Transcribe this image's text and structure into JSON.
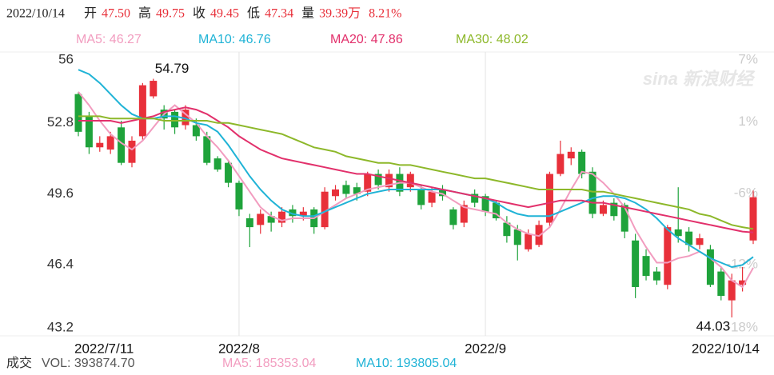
{
  "chart_data": {
    "type": "candlestick",
    "info": {
      "date": "2022/10/14",
      "fields": [
        {
          "label": "开",
          "value": "47.50"
        },
        {
          "label": "高",
          "value": "49.75"
        },
        {
          "label": "收",
          "value": "49.45"
        },
        {
          "label": "低",
          "value": "47.34"
        },
        {
          "label": "量",
          "value": "39.39万"
        }
      ],
      "change": "8.21%"
    },
    "watermark": "sina 新浪财经",
    "categories": [
      "2022/7/11",
      null,
      null,
      null,
      null,
      null,
      null,
      null,
      null,
      null,
      null,
      null,
      null,
      null,
      null,
      "2022/8",
      null,
      null,
      null,
      null,
      null,
      null,
      null,
      null,
      null,
      null,
      null,
      null,
      null,
      null,
      null,
      null,
      null,
      null,
      null,
      null,
      null,
      null,
      "2022/9",
      null,
      null,
      null,
      null,
      null,
      null,
      null,
      null,
      null,
      null,
      null,
      null,
      null,
      null,
      null,
      null,
      null,
      null,
      null,
      null,
      null,
      null,
      null,
      null,
      "2022/10/14"
    ],
    "open": [
      54.1,
      53.1,
      51.7,
      51.6,
      52.6,
      51.0,
      52.2,
      54.0,
      53.4,
      53.3,
      52.7,
      52.7,
      52.2,
      51.2,
      51.0,
      50.1,
      48.5,
      48.2,
      48.6,
      48.3,
      48.9,
      48.6,
      48.9,
      48.1,
      49.5,
      50.0,
      49.9,
      49.7,
      50.5,
      49.9,
      50.5,
      49.9,
      49.8,
      49.2,
      49.8,
      48.9,
      48.3,
      49.6,
      49.5,
      49.2,
      48.3,
      48.0,
      47.1,
      47.3,
      48.3,
      50.5,
      51.2,
      51.5,
      50.6,
      48.7,
      49.2,
      49.1,
      47.5,
      46.8,
      46.1,
      45.5,
      48.0,
      47.9,
      47.3,
      47.1,
      46.1,
      44.8,
      45.5,
      47.5
    ],
    "high": [
      54.2,
      53.3,
      52.2,
      52.4,
      52.9,
      52.2,
      54.6,
      54.79,
      53.6,
      53.4,
      53.6,
      53.0,
      52.4,
      51.3,
      51.1,
      50.2,
      48.7,
      48.9,
      48.8,
      49.0,
      49.1,
      49.0,
      49.0,
      49.9,
      50.0,
      50.2,
      50.1,
      50.6,
      50.7,
      50.7,
      50.8,
      50.6,
      50.0,
      49.9,
      50.0,
      49.0,
      49.3,
      49.8,
      49.6,
      49.3,
      48.6,
      48.2,
      48.0,
      48.4,
      50.6,
      52.0,
      51.7,
      51.6,
      50.8,
      49.3,
      49.4,
      49.2,
      47.8,
      47.1,
      46.3,
      48.2,
      49.9,
      48.1,
      47.8,
      47.3,
      46.3,
      46.0,
      46.3,
      49.75
    ],
    "low": [
      52.2,
      51.4,
      51.5,
      51.4,
      50.9,
      50.8,
      52.0,
      53.9,
      52.5,
      52.3,
      52.5,
      52.0,
      50.9,
      50.6,
      49.9,
      48.6,
      47.2,
      47.8,
      47.9,
      48.1,
      48.3,
      48.4,
      47.8,
      48.0,
      49.3,
      49.4,
      49.3,
      49.5,
      49.8,
      49.7,
      49.5,
      49.7,
      48.9,
      49.0,
      49.3,
      48.0,
      48.1,
      49.0,
      48.6,
      48.4,
      47.4,
      46.6,
      47.0,
      47.2,
      48.1,
      50.4,
      50.9,
      50.3,
      48.5,
      48.6,
      48.4,
      47.6,
      44.9,
      45.7,
      45.5,
      45.3,
      47.4,
      47.0,
      47.1,
      45.4,
      44.8,
      44.03,
      45.2,
      47.34
    ],
    "close": [
      52.4,
      51.7,
      51.9,
      52.2,
      51.0,
      52.0,
      54.5,
      54.7,
      53.0,
      52.6,
      53.4,
      52.2,
      51.0,
      50.7,
      50.1,
      48.9,
      48.1,
      48.7,
      48.3,
      48.8,
      48.6,
      48.8,
      48.1,
      49.7,
      49.8,
      49.6,
      49.6,
      50.5,
      50.0,
      50.5,
      49.7,
      50.5,
      49.1,
      49.7,
      49.5,
      48.2,
      49.1,
      49.2,
      48.8,
      48.5,
      47.7,
      47.3,
      47.8,
      48.2,
      50.5,
      51.4,
      51.5,
      50.5,
      48.7,
      49.1,
      48.6,
      47.9,
      45.4,
      45.9,
      45.7,
      48.1,
      47.7,
      47.3,
      47.6,
      45.5,
      45.0,
      45.7,
      45.7,
      49.45
    ],
    "up_color": "#e8303a",
    "down_color": "#1fa33b",
    "series": [
      {
        "name": "MA5: 46.27",
        "color": "#f29cbf",
        "values": [
          54.2,
          53.6,
          52.9,
          52.3,
          51.9,
          51.6,
          52.0,
          52.6,
          53.2,
          53.6,
          53.2,
          52.8,
          52.2,
          51.7,
          51.1,
          50.4,
          49.7,
          49.0,
          48.6,
          48.4,
          48.5,
          48.5,
          48.5,
          48.8,
          49.1,
          49.4,
          49.6,
          49.8,
          49.9,
          50.0,
          50.1,
          50.1,
          49.9,
          49.7,
          49.6,
          49.3,
          49.0,
          48.9,
          48.8,
          48.7,
          48.3,
          48.0,
          47.8,
          47.7,
          48.1,
          48.9,
          49.8,
          50.6,
          50.5,
          50.1,
          49.6,
          49.0,
          48.0,
          47.2,
          46.5,
          46.5,
          46.7,
          46.8,
          47.0,
          46.7,
          46.3,
          45.7,
          45.4,
          46.27
        ]
      },
      {
        "name": "MA10: 46.76",
        "color": "#1fb3d6",
        "values": [
          55.2,
          55.0,
          54.6,
          54.1,
          53.6,
          53.2,
          53.0,
          53.0,
          53.1,
          53.1,
          53.0,
          52.8,
          52.7,
          52.4,
          51.8,
          51.1,
          50.4,
          49.8,
          49.3,
          48.9,
          48.7,
          48.6,
          48.6,
          48.8,
          49.0,
          49.2,
          49.4,
          49.6,
          49.7,
          49.8,
          49.8,
          49.8,
          49.8,
          49.8,
          49.8,
          49.7,
          49.6,
          49.5,
          49.4,
          49.2,
          48.9,
          48.7,
          48.6,
          48.6,
          48.6,
          48.8,
          49.0,
          49.2,
          49.4,
          49.5,
          49.5,
          49.4,
          49.2,
          48.9,
          48.5,
          48.0,
          47.6,
          47.3,
          47.0,
          46.7,
          46.5,
          46.3,
          46.4,
          46.76
        ]
      },
      {
        "name": "MA20: 47.86",
        "color": "#e2306b",
        "values": [
          52.9,
          52.9,
          52.9,
          52.9,
          52.8,
          52.9,
          53.0,
          53.1,
          53.3,
          53.4,
          53.5,
          53.4,
          53.2,
          52.9,
          52.6,
          52.2,
          51.9,
          51.6,
          51.4,
          51.2,
          51.1,
          51.0,
          50.9,
          50.8,
          50.7,
          50.6,
          50.5,
          50.5,
          50.4,
          50.3,
          50.2,
          50.1,
          50.0,
          49.9,
          49.8,
          49.7,
          49.6,
          49.5,
          49.4,
          49.3,
          49.2,
          49.1,
          49.0,
          49.1,
          49.2,
          49.3,
          49.3,
          49.3,
          49.2,
          49.2,
          49.1,
          49.0,
          48.9,
          48.8,
          48.7,
          48.6,
          48.5,
          48.4,
          48.3,
          48.2,
          48.1,
          48.0,
          47.9,
          47.86
        ]
      },
      {
        "name": "MA30: 48.02",
        "color": "#8db82a",
        "values": [
          53.1,
          53.1,
          53.1,
          53.0,
          53.0,
          53.0,
          53.0,
          53.0,
          52.9,
          52.9,
          52.9,
          52.9,
          52.9,
          52.8,
          52.8,
          52.7,
          52.6,
          52.5,
          52.4,
          52.3,
          52.1,
          51.9,
          51.7,
          51.6,
          51.5,
          51.3,
          51.2,
          51.1,
          51.0,
          51.0,
          50.9,
          50.9,
          50.8,
          50.7,
          50.6,
          50.5,
          50.4,
          50.3,
          50.3,
          50.2,
          50.1,
          50.0,
          49.9,
          49.8,
          49.8,
          49.8,
          49.8,
          49.8,
          49.7,
          49.7,
          49.6,
          49.5,
          49.4,
          49.3,
          49.2,
          49.1,
          49.0,
          48.9,
          48.7,
          48.6,
          48.4,
          48.2,
          48.1,
          48.02
        ]
      }
    ],
    "annotations": [
      "54.79",
      "44.03"
    ],
    "ylim": [
      43.2,
      56
    ],
    "yticks": [
      56,
      52.8,
      49.6,
      46.4,
      43.2
    ],
    "y2lim": [
      -17.7,
      6.6
    ],
    "y2ticks": [
      {
        "value": 6.6,
        "label": "7%"
      },
      {
        "value": 0.6,
        "label": "1%"
      },
      {
        "value": -5.5,
        "label": "-6%"
      },
      {
        "value": -11.6,
        "label": "-12%"
      },
      {
        "value": -17.7,
        "label": "-18%"
      }
    ],
    "volume": {
      "label": "成交",
      "vol": "VOL: 393874.70",
      "ma": [
        {
          "name": "MA5: 185353.04",
          "color": "#f29cbf"
        },
        {
          "name": "MA10: 193805.04",
          "color": "#1fb3d6"
        }
      ]
    }
  }
}
